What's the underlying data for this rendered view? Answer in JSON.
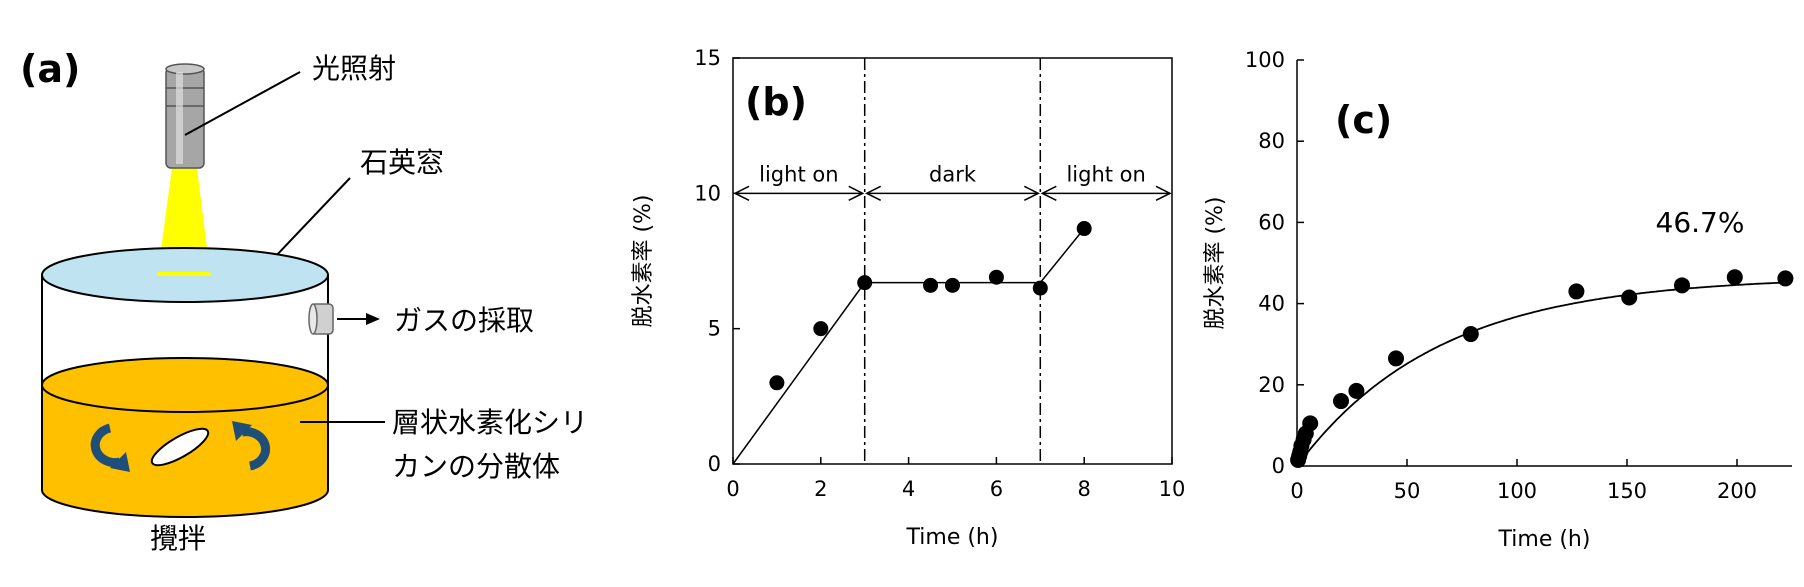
{
  "figure": {
    "panels": [
      "(a)",
      "(b)",
      "(c)"
    ]
  },
  "schematic": {
    "letter": "(a)",
    "light_label": "光照射",
    "window_label": "石英窓",
    "gas_label": "ガスの採取",
    "dispersion_label_line1": "層状水素化シリ",
    "dispersion_label_line2": "カンの分散体",
    "stirring_label": "攪拌",
    "colors": {
      "light_beam": "#ffff00",
      "window": "#bfe3f0",
      "liquid": "#ffc000",
      "arrows": "#1f4e79"
    }
  },
  "chart_data": [
    {
      "type": "scatter",
      "panel": "(b)",
      "xlabel": "Time (h)",
      "ylabel": "脱水素率 (%)",
      "xlim": [
        0,
        10
      ],
      "ylim": [
        0,
        15
      ],
      "xticks": [
        0,
        2,
        4,
        6,
        8,
        10
      ],
      "yticks": [
        0,
        5,
        10,
        15
      ],
      "points": {
        "x": [
          1,
          2,
          3,
          4.5,
          5,
          6,
          7,
          8
        ],
        "y": [
          3.0,
          5.0,
          6.7,
          6.6,
          6.6,
          6.9,
          6.5,
          8.7
        ]
      },
      "fit_line": {
        "x": [
          0,
          3,
          7,
          8
        ],
        "y": [
          0,
          6.7,
          6.7,
          8.7
        ]
      },
      "phase_boundaries": [
        3,
        7
      ],
      "phases": [
        {
          "label": "light on",
          "from": 0,
          "to": 3
        },
        {
          "label": "dark",
          "from": 3,
          "to": 7
        },
        {
          "label": "light on",
          "from": 7,
          "to": 10
        }
      ],
      "phase_arrow_y": 10
    },
    {
      "type": "scatter",
      "panel": "(c)",
      "xlabel": "Time (h)",
      "ylabel": "脱水素率 (%)",
      "xlim": [
        0,
        225
      ],
      "ylim": [
        0,
        100
      ],
      "xticks": [
        0,
        50,
        100,
        150,
        200
      ],
      "yticks": [
        0,
        20,
        40,
        60,
        80,
        100
      ],
      "points": {
        "x": [
          0.5,
          1,
          1.5,
          2,
          3,
          4,
          6,
          20,
          27,
          45,
          79,
          127,
          151,
          175,
          199,
          222
        ],
        "y": [
          1.5,
          2.5,
          3.5,
          5,
          6.5,
          8,
          10.5,
          16,
          18.5,
          26.5,
          32.5,
          43,
          41.5,
          44.5,
          46.5,
          46.2
        ]
      },
      "fit_curve": {
        "type": "saturation",
        "plateau": 46.7,
        "rate": 0.0155
      },
      "annotation": "46.7%"
    }
  ]
}
